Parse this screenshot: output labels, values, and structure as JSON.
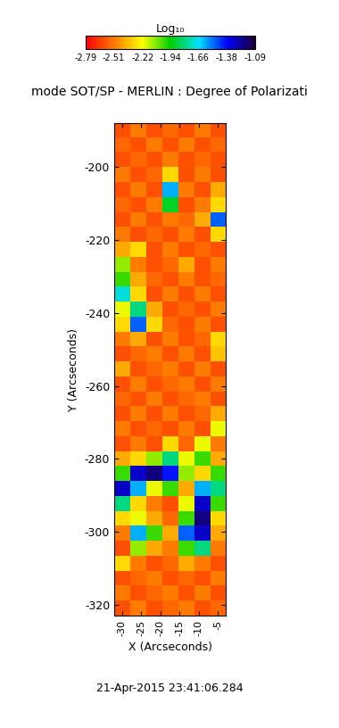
{
  "chart_data": {
    "type": "heatmap",
    "title": "mode SOT/SP - MERLIN : Degree of Polarizati",
    "xlabel": "X (Arcseconds)",
    "ylabel": "Y (Arcseconds)",
    "annotations": [
      "21-Apr-2015 23:41:06.284"
    ],
    "xlim": [
      -32,
      -3
    ],
    "ylim": [
      -323,
      -188
    ],
    "xticks": [
      -30,
      -25,
      -20,
      -15,
      -10,
      -5
    ],
    "yticks": [
      -200,
      -220,
      -240,
      -260,
      -280,
      -300,
      -320
    ],
    "cells": [
      [
        -2.6,
        -2.5,
        -2.6,
        -2.55,
        -2.6,
        -2.5,
        -2.6
      ],
      [
        -2.55,
        -2.6,
        -2.5,
        -2.6,
        -2.5,
        -2.6,
        -2.55
      ],
      [
        -2.6,
        -2.55,
        -2.6,
        -2.5,
        -2.6,
        -2.55,
        -2.6
      ],
      [
        -2.5,
        -2.6,
        -2.55,
        -2.3,
        -2.6,
        -2.5,
        -2.6
      ],
      [
        -2.6,
        -2.5,
        -2.6,
        -1.6,
        -2.5,
        -2.6,
        -2.4
      ],
      [
        -2.55,
        -2.6,
        -2.5,
        -1.9,
        -2.6,
        -2.5,
        -2.3
      ],
      [
        -2.6,
        -2.5,
        -2.6,
        -2.5,
        -2.55,
        -2.4,
        -1.5
      ],
      [
        -2.5,
        -2.6,
        -2.55,
        -2.6,
        -2.5,
        -2.6,
        -2.3
      ],
      [
        -2.4,
        -2.3,
        -2.6,
        -2.5,
        -2.6,
        -2.55,
        -2.6
      ],
      [
        -2.1,
        -2.5,
        -2.6,
        -2.55,
        -2.4,
        -2.6,
        -2.5
      ],
      [
        -2.0,
        -2.4,
        -2.55,
        -2.6,
        -2.5,
        -2.6,
        -2.55
      ],
      [
        -1.7,
        -2.3,
        -2.6,
        -2.5,
        -2.6,
        -2.5,
        -2.6
      ],
      [
        -2.2,
        -1.8,
        -2.4,
        -2.6,
        -2.55,
        -2.6,
        -2.5
      ],
      [
        -2.3,
        -1.5,
        -2.3,
        -2.55,
        -2.6,
        -2.5,
        -2.6
      ],
      [
        -2.5,
        -2.4,
        -2.6,
        -2.5,
        -2.6,
        -2.55,
        -2.3
      ],
      [
        -2.6,
        -2.55,
        -2.5,
        -2.6,
        -2.5,
        -2.6,
        -2.35
      ],
      [
        -2.4,
        -2.6,
        -2.55,
        -2.5,
        -2.6,
        -2.5,
        -2.6
      ],
      [
        -2.6,
        -2.5,
        -2.6,
        -2.55,
        -2.5,
        -2.6,
        -2.5
      ],
      [
        -2.55,
        -2.6,
        -2.5,
        -2.6,
        -2.55,
        -2.5,
        -2.6
      ],
      [
        -2.6,
        -2.5,
        -2.6,
        -2.5,
        -2.6,
        -2.55,
        -2.4
      ],
      [
        -2.5,
        -2.6,
        -2.55,
        -2.6,
        -2.5,
        -2.6,
        -2.2
      ],
      [
        -2.6,
        -2.5,
        -2.6,
        -2.3,
        -2.55,
        -2.2,
        -2.5
      ],
      [
        -2.4,
        -2.3,
        -2.1,
        -1.8,
        -2.2,
        -2.0,
        -2.4
      ],
      [
        -2.0,
        -1.3,
        -1.2,
        -1.4,
        -2.1,
        -2.3,
        -2.0
      ],
      [
        -1.3,
        -1.6,
        -2.2,
        -2.0,
        -2.4,
        -1.6,
        -1.8
      ],
      [
        -1.8,
        -2.3,
        -2.5,
        -2.6,
        -2.2,
        -1.3,
        -2.0
      ],
      [
        -2.3,
        -2.2,
        -2.4,
        -2.55,
        -2.0,
        -1.2,
        -2.3
      ],
      [
        -2.5,
        -1.6,
        -2.0,
        -2.4,
        -1.5,
        -1.3,
        -2.4
      ],
      [
        -2.6,
        -2.1,
        -2.4,
        -2.5,
        -2.0,
        -1.8,
        -2.5
      ],
      [
        -2.3,
        -2.5,
        -2.6,
        -2.55,
        -2.4,
        -2.5,
        -2.6
      ],
      [
        -2.6,
        -2.55,
        -2.5,
        -2.6,
        -2.55,
        -2.6,
        -2.5
      ],
      [
        -2.5,
        -2.6,
        -2.55,
        -2.5,
        -2.6,
        -2.5,
        -2.6
      ],
      [
        -2.6,
        -2.5,
        -2.6,
        -2.55,
        -2.5,
        -2.6,
        -2.55
      ]
    ],
    "colorbar": {
      "label": "Log₁₀",
      "range": [
        -2.79,
        -1.09
      ],
      "ticks": [
        -2.79,
        -2.51,
        -2.22,
        -1.94,
        -1.66,
        -1.38,
        -1.09
      ]
    }
  }
}
